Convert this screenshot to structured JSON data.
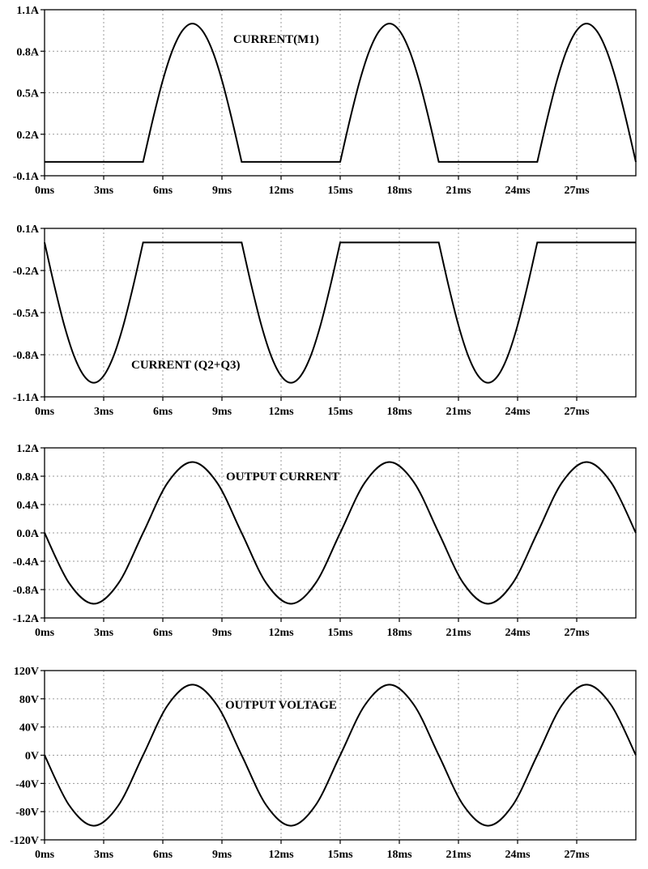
{
  "chart_data": [
    {
      "type": "line",
      "annotation": "CURRENT(M1)",
      "xlim": [
        0,
        30
      ],
      "x_ticks": [
        0,
        3,
        6,
        9,
        12,
        15,
        18,
        21,
        24,
        27
      ],
      "x_tick_labels": [
        "0ms",
        "3ms",
        "6ms",
        "9ms",
        "12ms",
        "15ms",
        "18ms",
        "21ms",
        "24ms",
        "27ms"
      ],
      "ylim": [
        -0.1,
        1.1
      ],
      "y_ticks": [
        1.1,
        0.8,
        0.5,
        0.2,
        -0.1
      ],
      "y_tick_labels": [
        "1.1A",
        "0.8A",
        "0.5A",
        "0.2A",
        "-0.1A"
      ],
      "grid": true,
      "series": [
        {
          "x": [
            0,
            5,
            5.5,
            6,
            6.5,
            7,
            7.5,
            8,
            8.5,
            9,
            9.5,
            10,
            15,
            15.5,
            16,
            16.5,
            17,
            17.5,
            18,
            18.5,
            19,
            19.5,
            20,
            25,
            25.5,
            26,
            26.5,
            27,
            27.5,
            28,
            28.5,
            29,
            29.5,
            30
          ],
          "y": [
            0,
            0,
            0.31,
            0.59,
            0.81,
            0.95,
            1.0,
            0.95,
            0.81,
            0.59,
            0.31,
            0,
            0,
            0.31,
            0.59,
            0.81,
            0.95,
            1.0,
            0.95,
            0.81,
            0.59,
            0.31,
            0,
            0,
            0.31,
            0.59,
            0.81,
            0.95,
            1.0,
            0.95,
            0.81,
            0.59,
            0.31,
            0
          ]
        }
      ]
    },
    {
      "type": "line",
      "annotation": "CURRENT (Q2+Q3)",
      "xlim": [
        0,
        30
      ],
      "x_ticks": [
        0,
        3,
        6,
        9,
        12,
        15,
        18,
        21,
        24,
        27
      ],
      "x_tick_labels": [
        "0ms",
        "3ms",
        "6ms",
        "9ms",
        "12ms",
        "15ms",
        "18ms",
        "21ms",
        "24ms",
        "27ms"
      ],
      "ylim": [
        -1.1,
        0.1
      ],
      "y_ticks": [
        0.1,
        -0.2,
        -0.5,
        -0.8,
        -1.1
      ],
      "y_tick_labels": [
        "0.1A",
        "-0.2A",
        "-0.5A",
        "-0.8A",
        "-1.1A"
      ],
      "grid": true,
      "series": [
        {
          "x": [
            0,
            0.5,
            1,
            1.5,
            2,
            2.5,
            3,
            3.5,
            4,
            4.5,
            5,
            10,
            10.5,
            11,
            11.5,
            12,
            12.5,
            13,
            13.5,
            14,
            14.5,
            15,
            20,
            20.5,
            21,
            21.5,
            22,
            22.5,
            23,
            23.5,
            24,
            24.5,
            25,
            30
          ],
          "y": [
            0,
            -0.31,
            -0.59,
            -0.81,
            -0.95,
            -1.0,
            -0.95,
            -0.81,
            -0.59,
            -0.31,
            0,
            0,
            -0.31,
            -0.59,
            -0.81,
            -0.95,
            -1.0,
            -0.95,
            -0.81,
            -0.59,
            -0.31,
            0,
            0,
            -0.31,
            -0.59,
            -0.81,
            -0.95,
            -1.0,
            -0.95,
            -0.81,
            -0.59,
            -0.31,
            0,
            0
          ]
        }
      ]
    },
    {
      "type": "line",
      "annotation": "OUTPUT CURRENT",
      "xlim": [
        0,
        30
      ],
      "x_ticks": [
        0,
        3,
        6,
        9,
        12,
        15,
        18,
        21,
        24,
        27
      ],
      "x_tick_labels": [
        "0ms",
        "3ms",
        "6ms",
        "9ms",
        "12ms",
        "15ms",
        "18ms",
        "21ms",
        "24ms",
        "27ms"
      ],
      "ylim": [
        -1.2,
        1.2
      ],
      "y_ticks": [
        1.2,
        0.8,
        0.4,
        0.0,
        -0.4,
        -0.8,
        -1.2
      ],
      "y_tick_labels": [
        "1.2A",
        "0.8A",
        "0.4A",
        "0.0A",
        "-0.4A",
        "-0.8A",
        "-1.2A"
      ],
      "grid": true,
      "series": [
        {
          "x": [
            0,
            1.25,
            2.5,
            3.75,
            5,
            6.25,
            7.5,
            8.75,
            10,
            11.25,
            12.5,
            13.75,
            15,
            16.25,
            17.5,
            18.75,
            20,
            21.25,
            22.5,
            23.75,
            25,
            26.25,
            27.5,
            28.75,
            30
          ],
          "y": [
            0,
            -0.71,
            -1.0,
            -0.71,
            0,
            0.71,
            1.0,
            0.71,
            0,
            -0.71,
            -1.0,
            -0.71,
            0,
            0.71,
            1.0,
            0.71,
            0,
            -0.71,
            -1.0,
            -0.71,
            0,
            0.71,
            1.0,
            0.71,
            0
          ]
        }
      ]
    },
    {
      "type": "line",
      "annotation": "OUTPUT VOLTAGE",
      "xlim": [
        0,
        30
      ],
      "x_ticks": [
        0,
        3,
        6,
        9,
        12,
        15,
        18,
        21,
        24,
        27
      ],
      "x_tick_labels": [
        "0ms",
        "3ms",
        "6ms",
        "9ms",
        "12ms",
        "15ms",
        "18ms",
        "21ms",
        "24ms",
        "27ms"
      ],
      "ylim": [
        -120,
        120
      ],
      "y_ticks": [
        120,
        80,
        40,
        0,
        -40,
        -80,
        -120
      ],
      "y_tick_labels": [
        "120V",
        "80V",
        "40V",
        "0V",
        "-40V",
        "-80V",
        "-120V"
      ],
      "grid": true,
      "series": [
        {
          "x": [
            0,
            1.25,
            2.5,
            3.75,
            5,
            6.25,
            7.5,
            8.75,
            10,
            11.25,
            12.5,
            13.75,
            15,
            16.25,
            17.5,
            18.75,
            20,
            21.25,
            22.5,
            23.75,
            25,
            26.25,
            27.5,
            28.75,
            30
          ],
          "y": [
            0,
            -71,
            -100,
            -71,
            0,
            71,
            100,
            71,
            0,
            -71,
            -100,
            -71,
            0,
            71,
            100,
            71,
            0,
            -71,
            -100,
            -71,
            0,
            71,
            100,
            71,
            0
          ]
        }
      ]
    }
  ]
}
